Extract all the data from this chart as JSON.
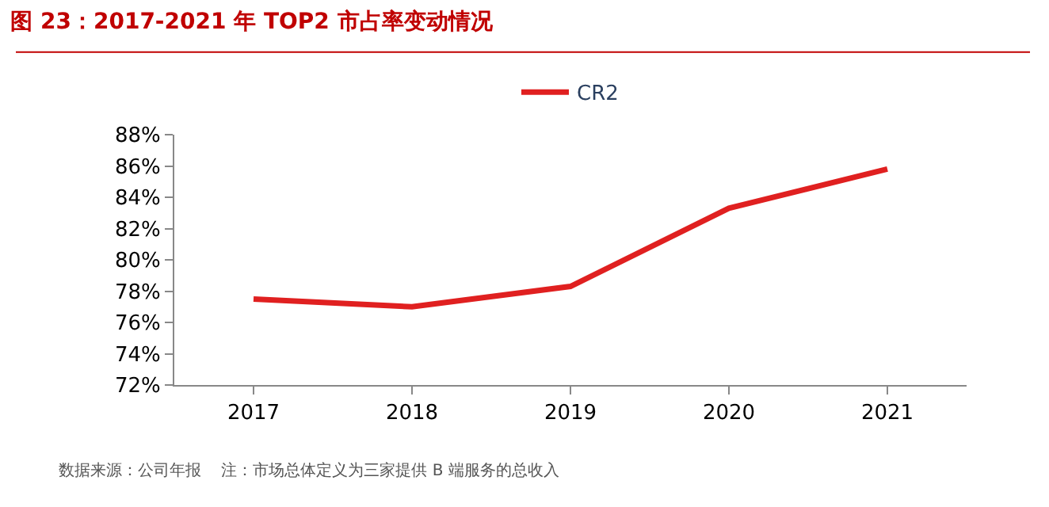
{
  "chart_data": {
    "type": "line",
    "title": "图 23：2017-2021 年 TOP2 市占率变动情况",
    "categories": [
      "2017",
      "2018",
      "2019",
      "2020",
      "2021"
    ],
    "series": [
      {
        "name": "CR2",
        "color": "#e02020",
        "values": [
          77.5,
          77.0,
          78.3,
          83.3,
          85.8
        ]
      }
    ],
    "ylim": [
      72,
      88
    ],
    "yticks": [
      {
        "value": 72,
        "label": "72%"
      },
      {
        "value": 74,
        "label": "74%"
      },
      {
        "value": 76,
        "label": "76%"
      },
      {
        "value": 78,
        "label": "78%"
      },
      {
        "value": 80,
        "label": "80%"
      },
      {
        "value": 82,
        "label": "82%"
      },
      {
        "value": 84,
        "label": "84%"
      },
      {
        "value": 86,
        "label": "86%"
      },
      {
        "value": 88,
        "label": "88%"
      }
    ],
    "legend": "top",
    "marker": "none",
    "line_style": "solid",
    "annotations": [
      "数据来源：公司年报    注：市场总体定义为三家提供 B 端服务的总收入"
    ]
  }
}
